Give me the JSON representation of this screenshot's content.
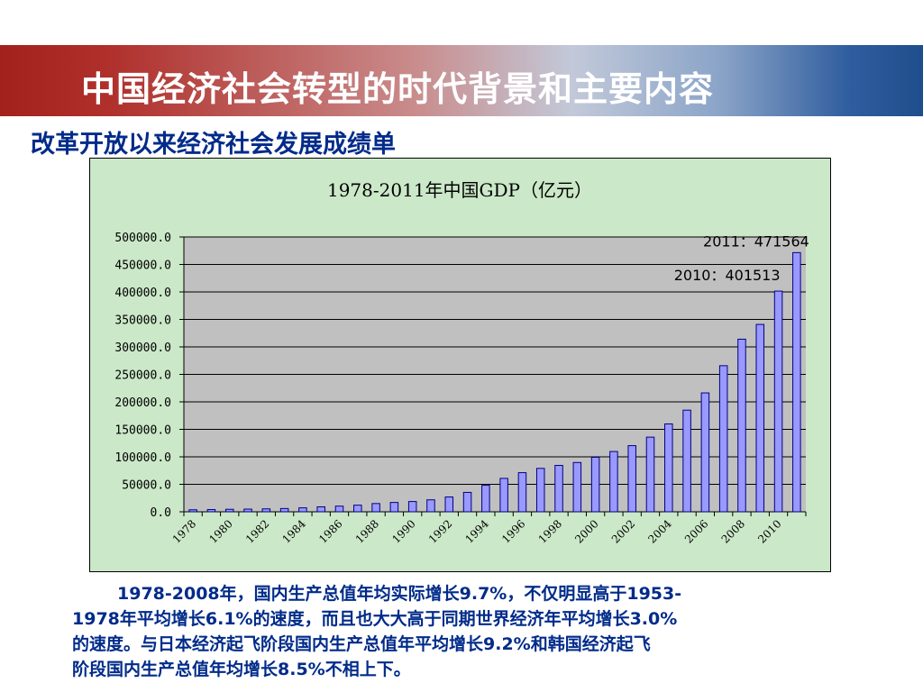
{
  "slide": {
    "title": "中国经济社会转型的时代背景和主要内容",
    "subtitle": "改革开放以来经济社会发展成绩单",
    "body_lines": [
      "1978-2008年，国内生产总值年均实际增长9.7%，不仅明显高于1953-",
      "1978年平均增长6.1%的速度，而且也大大高于同期世界经济年平均增长3.0%",
      "的速度。与日本经济起飞阶段国内生产总值年平均增长9.2%和韩国经济起飞",
      "阶段国内生产总值年均增长8.5%不相上下。"
    ]
  },
  "colors": {
    "title_text": "#ffffff",
    "subtitle_text": "#002b8a",
    "chart_background": "#cbe8c8",
    "plot_background": "#c0c0c0",
    "bar_fill": "#9999ff",
    "bar_stroke": "#000080"
  },
  "chart_data": {
    "type": "bar",
    "title": "1978-2011年中国GDP（亿元）",
    "xlabel": "",
    "ylabel": "",
    "ylim": [
      0,
      500000
    ],
    "yticks": [
      "0.0",
      "50000.0",
      "100000.0",
      "150000.0",
      "200000.0",
      "250000.0",
      "300000.0",
      "350000.0",
      "400000.0",
      "450000.0",
      "500000.0"
    ],
    "grid": true,
    "categories": [
      1978,
      1979,
      1980,
      1981,
      1982,
      1983,
      1984,
      1985,
      1986,
      1987,
      1988,
      1989,
      1990,
      1991,
      1992,
      1993,
      1994,
      1995,
      1996,
      1997,
      1998,
      1999,
      2000,
      2001,
      2002,
      2003,
      2004,
      2005,
      2006,
      2007,
      2008,
      2009,
      2010,
      2011
    ],
    "xtick_labels": [
      "1978",
      "1980",
      "1982",
      "1984",
      "1986",
      "1988",
      "1990",
      "1992",
      "1994",
      "1996",
      "1998",
      "2000",
      "2002",
      "2004",
      "2006",
      "2008",
      "2010"
    ],
    "values": [
      3645,
      4063,
      4546,
      4892,
      5323,
      5963,
      7208,
      9016,
      10275,
      12059,
      15043,
      16992,
      18668,
      21781,
      26923,
      35334,
      48198,
      60794,
      71177,
      78973,
      84402,
      89677,
      99215,
      109655,
      120333,
      135823,
      159878,
      184937,
      216314,
      265810,
      314045,
      340903,
      401513,
      471564
    ],
    "annotations": [
      "2011：471564",
      "2010：401513"
    ]
  }
}
